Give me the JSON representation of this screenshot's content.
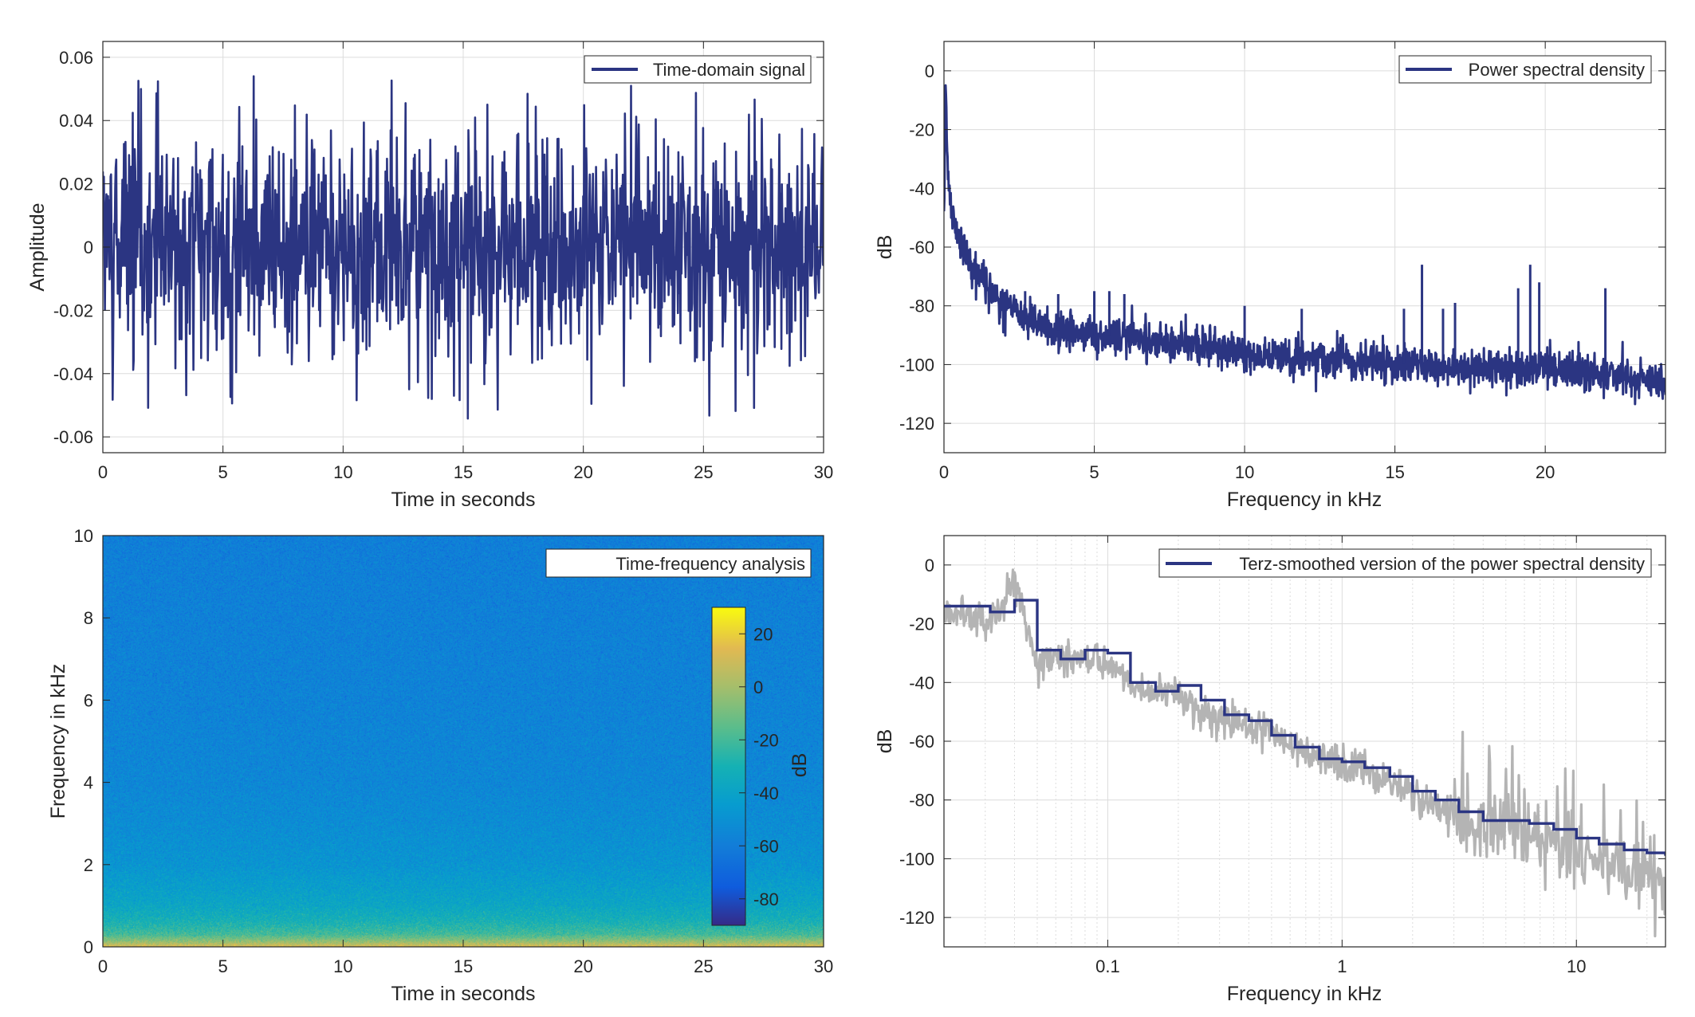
{
  "colors": {
    "line": "#2b3582",
    "raw_psd": "#b4b4b4",
    "grid": "#dcdcdc",
    "axis": "#262626"
  },
  "chart_data": [
    {
      "type": "line",
      "legend": "Time-domain signal",
      "legend_position": "top-right",
      "xlabel": "Time in seconds",
      "ylabel": "Amplitude",
      "xlim": [
        0,
        30
      ],
      "ylim": [
        -0.065,
        0.065
      ],
      "xticks": [
        0,
        5,
        10,
        15,
        20,
        25,
        30
      ],
      "xtick_labels": [
        "0",
        "5",
        "10",
        "15",
        "20",
        "25",
        "30"
      ],
      "yticks": [
        -0.06,
        -0.04,
        -0.02,
        0,
        0.02,
        0.04,
        0.06
      ],
      "ytick_labels": [
        "-0.06",
        "-0.04",
        "-0.02",
        "0",
        "0.02",
        "0.04",
        "0.06"
      ],
      "grid": true,
      "signal_envelope": {
        "typical_peak": 0.03,
        "max_peak": 0.054,
        "min_peak": -0.055
      }
    },
    {
      "type": "line",
      "legend": "Power spectral density",
      "legend_position": "top-right",
      "xlabel": "Frequency in kHz",
      "ylabel": "dB",
      "xlim": [
        0,
        24
      ],
      "ylim": [
        -130,
        10
      ],
      "xticks": [
        0,
        5,
        10,
        15,
        20
      ],
      "xtick_labels": [
        "0",
        "5",
        "10",
        "15",
        "20"
      ],
      "yticks": [
        -120,
        -100,
        -80,
        -60,
        -40,
        -20,
        0
      ],
      "ytick_labels": [
        "-120",
        "-100",
        "-80",
        "-60",
        "-40",
        "-20",
        "0"
      ],
      "grid": true,
      "x": [
        0,
        0.05,
        0.1,
        0.2,
        0.4,
        0.7,
        1.0,
        1.5,
        2,
        3,
        4,
        5,
        6,
        7,
        8,
        10,
        12,
        14,
        16,
        18,
        20,
        22,
        24
      ],
      "y": [
        -50,
        -5,
        -25,
        -45,
        -55,
        -62,
        -67,
        -74,
        -80,
        -86,
        -89,
        -90,
        -90,
        -92,
        -93,
        -96,
        -98,
        -99,
        -100,
        -101,
        -101,
        -103,
        -106
      ],
      "peaks": [
        {
          "x": 2.7,
          "y": -75
        },
        {
          "x": 3.8,
          "y": -76
        },
        {
          "x": 5.0,
          "y": -75
        },
        {
          "x": 5.5,
          "y": -75
        },
        {
          "x": 6.0,
          "y": -76
        },
        {
          "x": 10.0,
          "y": -80
        },
        {
          "x": 11.9,
          "y": -81
        },
        {
          "x": 15.3,
          "y": -81
        },
        {
          "x": 15.9,
          "y": -66
        },
        {
          "x": 16.6,
          "y": -81
        },
        {
          "x": 17.0,
          "y": -79
        },
        {
          "x": 19.1,
          "y": -74
        },
        {
          "x": 19.5,
          "y": -66
        },
        {
          "x": 19.8,
          "y": -72
        },
        {
          "x": 22.0,
          "y": -74
        }
      ]
    },
    {
      "type": "heatmap",
      "legend": "Time-frequency analysis",
      "legend_position": "top-right",
      "xlabel": "Time in seconds",
      "ylabel": "Frequency in kHz",
      "xlim": [
        0,
        30
      ],
      "ylim": [
        0,
        10
      ],
      "xticks": [
        0,
        5,
        10,
        15,
        20,
        25,
        30
      ],
      "xtick_labels": [
        "0",
        "5",
        "10",
        "15",
        "20",
        "25",
        "30"
      ],
      "yticks": [
        0,
        2,
        4,
        6,
        8,
        10
      ],
      "ytick_labels": [
        "0",
        "2",
        "4",
        "6",
        "8",
        "10"
      ],
      "colorbar": {
        "label": "dB",
        "limits": [
          -90,
          30
        ],
        "ticks": [
          -80,
          -60,
          -40,
          -20,
          0,
          20
        ],
        "tick_labels": [
          "-80",
          "-60",
          "-40",
          "-20",
          "0",
          "20"
        ],
        "colormap": "parula"
      },
      "level_profile": {
        "frequency_khz": [
          0,
          0.1,
          0.3,
          0.6,
          1.0,
          1.5,
          2.0,
          3.0,
          4.0,
          6.0,
          8.0,
          10.0
        ],
        "level_db": [
          15,
          0,
          -20,
          -30,
          -38,
          -43,
          -48,
          -52,
          -55,
          -57,
          -58,
          -59
        ]
      }
    },
    {
      "type": "line",
      "legend": "Terz-smoothed version of the power spectral density",
      "legend_position": "top-right",
      "xlabel": "Frequency in kHz",
      "ylabel": "dB",
      "xscale": "log",
      "xlim": [
        0.02,
        24
      ],
      "ylim": [
        -130,
        10
      ],
      "xticks": [
        0.1,
        1,
        10
      ],
      "xtick_labels": [
        "0.1",
        "1",
        "10"
      ],
      "yticks": [
        -120,
        -100,
        -80,
        -60,
        -40,
        -20,
        0
      ],
      "ytick_labels": [
        "-120",
        "-100",
        "-80",
        "-60",
        "-40",
        "-20",
        "0"
      ],
      "grid": true,
      "series": [
        {
          "style": "raw",
          "x": [
            0.02,
            0.025,
            0.03,
            0.035,
            0.04,
            0.045,
            0.05,
            0.06,
            0.08,
            0.1,
            0.13,
            0.16,
            0.2,
            0.25,
            0.32,
            0.4,
            0.5,
            0.63,
            0.8,
            1.0,
            1.25,
            1.6,
            2.0,
            2.5,
            3.15,
            4.0,
            5.0,
            6.3,
            8.0,
            10.0,
            12.5,
            16,
            20,
            24
          ],
          "y": [
            -18,
            -14,
            -20,
            -16,
            -3,
            -20,
            -32,
            -33,
            -30,
            -33,
            -41,
            -44,
            -44,
            -50,
            -52,
            -56,
            -57,
            -62,
            -65,
            -68,
            -69,
            -73,
            -78,
            -82,
            -87,
            -89,
            -90,
            -93,
            -95,
            -97,
            -101,
            -104,
            -106,
            -110
          ]
        },
        {
          "style": "smoothed",
          "x": [
            0.02,
            0.025,
            0.0315,
            0.04,
            0.05,
            0.063,
            0.08,
            0.1,
            0.125,
            0.16,
            0.2,
            0.25,
            0.315,
            0.4,
            0.5,
            0.63,
            0.8,
            1.0,
            1.25,
            1.6,
            2.0,
            2.5,
            3.15,
            4.0,
            5.0,
            6.3,
            8.0,
            10.0,
            12.5,
            16,
            20,
            24
          ],
          "y": [
            -14,
            -14,
            -16,
            -12,
            -29,
            -32,
            -29,
            -30,
            -40,
            -43,
            -41,
            -46,
            -51,
            -53,
            -58,
            -62,
            -66,
            -67,
            -69,
            -72,
            -77,
            -80,
            -84,
            -87,
            -87,
            -88,
            -90,
            -93,
            -95,
            -97,
            -98,
            -99
          ]
        }
      ]
    }
  ]
}
